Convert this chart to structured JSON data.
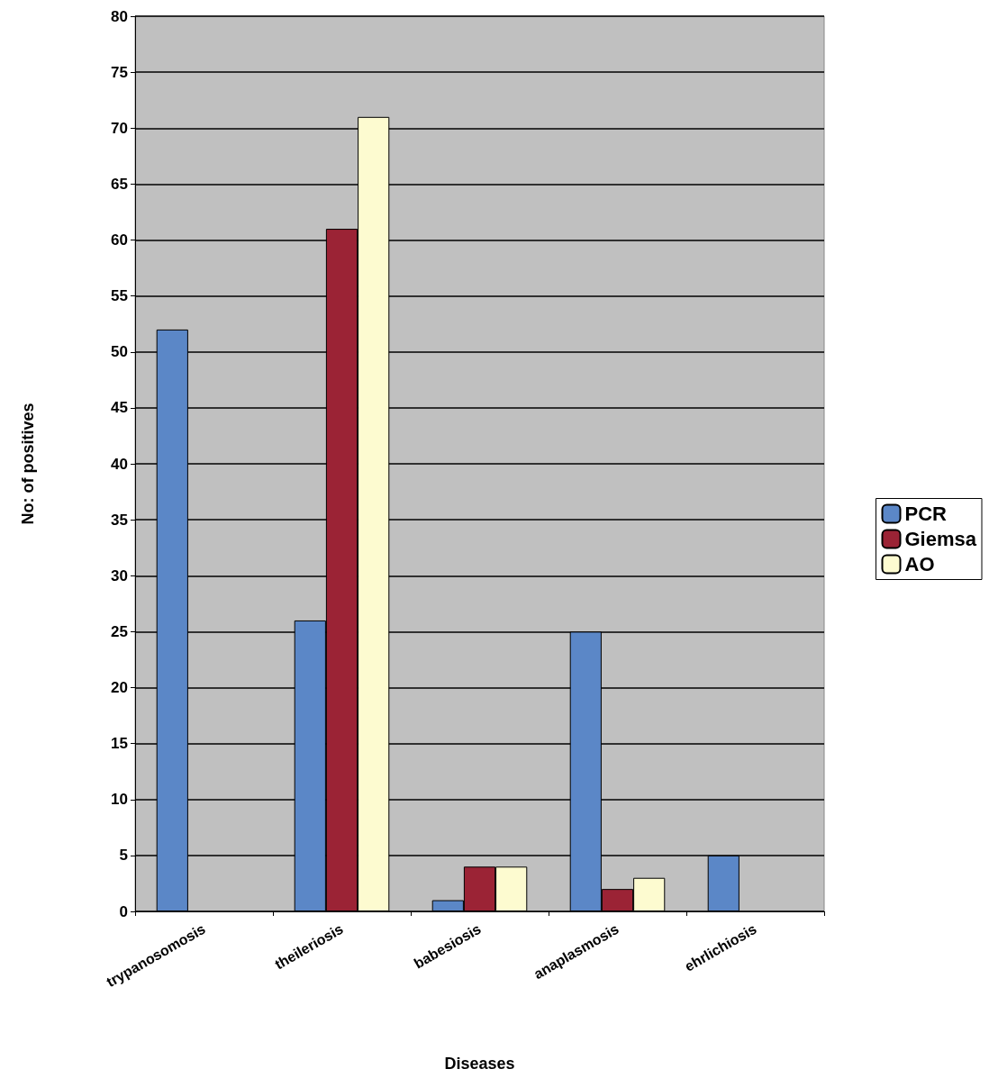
{
  "chart_data": {
    "type": "bar",
    "xlabel": "Diseases",
    "ylabel": "No: of positives",
    "categories": [
      "trypanosomosis",
      "theileriosis",
      "babesiosis",
      "anaplasmosis",
      "ehrlichiosis"
    ],
    "series": [
      {
        "name": "PCR",
        "color": "#5b87c7",
        "values": [
          52,
          26,
          1,
          25,
          5
        ]
      },
      {
        "name": "Giemsa",
        "color": "#9b2335",
        "values": [
          null,
          61,
          4,
          2,
          null
        ]
      },
      {
        "name": "AO",
        "color": "#fdfbd0",
        "values": [
          null,
          71,
          4,
          3,
          null
        ]
      }
    ],
    "ylim": [
      0,
      80
    ],
    "yticks": [
      0,
      5,
      10,
      15,
      20,
      25,
      30,
      35,
      40,
      45,
      50,
      55,
      60,
      65,
      70,
      75,
      80
    ],
    "grid": "y",
    "legend": "right"
  }
}
